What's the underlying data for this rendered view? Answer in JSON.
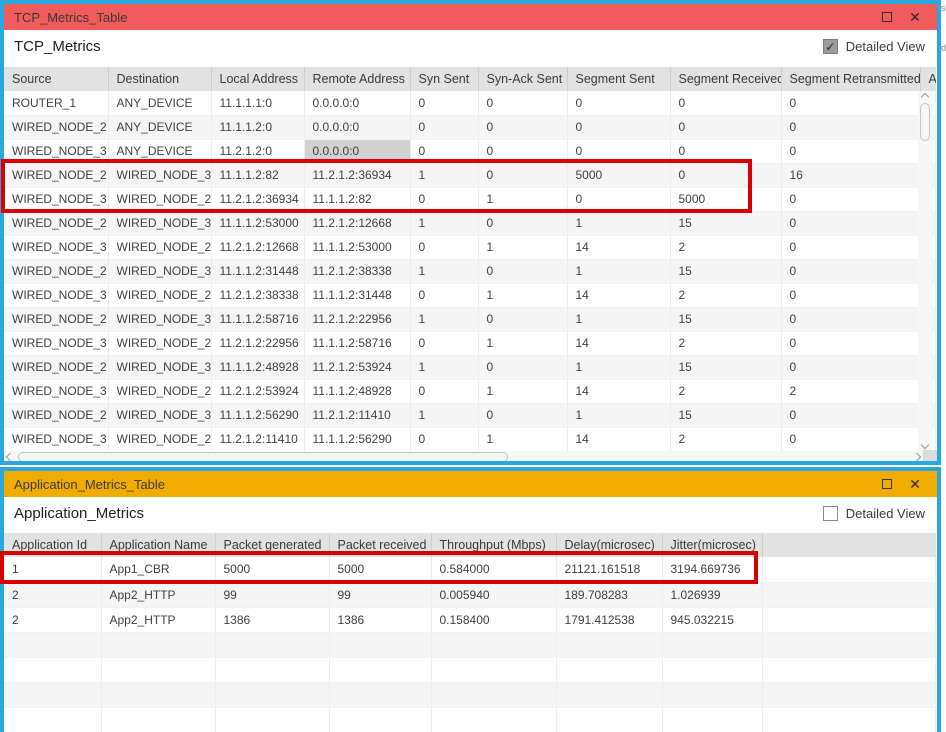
{
  "tcp_window": {
    "title": "TCP_Metrics_Table",
    "close_icon": "✕",
    "section_title": "TCP_Metrics",
    "detailed_view": {
      "label": "Detailed View",
      "checked": true
    },
    "table": {
      "columns": [
        "Source",
        "Destination",
        "Local Address",
        "Remote Address",
        "Syn Sent",
        "Syn-Ack Sent",
        "Segment Sent",
        "Segment Received",
        "Segment Retransmitted",
        "A"
      ],
      "rows": [
        [
          "ROUTER_1",
          "ANY_DEVICE",
          "11.1.1.1:0",
          "0.0.0.0:0",
          "0",
          "0",
          "0",
          "0",
          "0"
        ],
        [
          "WIRED_NODE_2",
          "ANY_DEVICE",
          "11.1.1.2:0",
          "0.0.0.0:0",
          "0",
          "0",
          "0",
          "0",
          "0"
        ],
        [
          "WIRED_NODE_3",
          "ANY_DEVICE",
          "11.2.1.2:0",
          "0.0.0.0:0",
          "0",
          "0",
          "0",
          "0",
          "0"
        ],
        [
          "WIRED_NODE_2",
          "WIRED_NODE_3",
          "11.1.1.2:82",
          "11.2.1.2:36934",
          "1",
          "0",
          "5000",
          "0",
          "16"
        ],
        [
          "WIRED_NODE_3",
          "WIRED_NODE_2",
          "11.2.1.2:36934",
          "11.1.1.2:82",
          "0",
          "1",
          "0",
          "5000",
          "0"
        ],
        [
          "WIRED_NODE_2",
          "WIRED_NODE_3",
          "11.1.1.2:53000",
          "11.2.1.2:12668",
          "1",
          "0",
          "1",
          "15",
          "0"
        ],
        [
          "WIRED_NODE_3",
          "WIRED_NODE_2",
          "11.2.1.2:12668",
          "11.1.1.2:53000",
          "0",
          "1",
          "14",
          "2",
          "0"
        ],
        [
          "WIRED_NODE_2",
          "WIRED_NODE_3",
          "11.1.1.2:31448",
          "11.2.1.2:38338",
          "1",
          "0",
          "1",
          "15",
          "0"
        ],
        [
          "WIRED_NODE_3",
          "WIRED_NODE_2",
          "11.2.1.2:38338",
          "11.1.1.2:31448",
          "0",
          "1",
          "14",
          "2",
          "0"
        ],
        [
          "WIRED_NODE_2",
          "WIRED_NODE_3",
          "11.1.1.2:58716",
          "11.2.1.2:22956",
          "1",
          "0",
          "1",
          "15",
          "0"
        ],
        [
          "WIRED_NODE_3",
          "WIRED_NODE_2",
          "11.2.1.2:22956",
          "11.1.1.2:58716",
          "0",
          "1",
          "14",
          "2",
          "0"
        ],
        [
          "WIRED_NODE_2",
          "WIRED_NODE_3",
          "11.1.1.2:48928",
          "11.2.1.2:53924",
          "1",
          "0",
          "1",
          "15",
          "0"
        ],
        [
          "WIRED_NODE_3",
          "WIRED_NODE_2",
          "11.2.1.2:53924",
          "11.1.1.2:48928",
          "0",
          "1",
          "14",
          "2",
          "2"
        ],
        [
          "WIRED_NODE_2",
          "WIRED_NODE_3",
          "11.1.1.2:56290",
          "11.2.1.2:11410",
          "1",
          "0",
          "1",
          "15",
          "0"
        ],
        [
          "WIRED_NODE_3",
          "WIRED_NODE_2",
          "11.2.1.2:11410",
          "11.1.1.2:56290",
          "0",
          "1",
          "14",
          "2",
          "0"
        ]
      ],
      "selected_cell": {
        "row": 2,
        "col": 3
      }
    }
  },
  "app_window": {
    "title": "Application_Metrics_Table",
    "close_icon": "✕",
    "section_title": "Application_Metrics",
    "detailed_view": {
      "label": "Detailed View",
      "checked": false
    },
    "table": {
      "columns": [
        "Application Id",
        "Application Name",
        "Packet generated",
        "Packet received",
        "Throughput (Mbps)",
        "Delay(microsec)",
        "Jitter(microsec)"
      ],
      "rows": [
        [
          "1",
          "App1_CBR",
          "5000",
          "5000",
          "0.584000",
          "21121.161518",
          "3194.669736"
        ],
        [
          "2",
          "App2_HTTP",
          "99",
          "99",
          "0.005940",
          "189.708283",
          "1.026939"
        ],
        [
          "2",
          "App2_HTTP",
          "1386",
          "1386",
          "0.158400",
          "1791.412538",
          "945.032215"
        ]
      ],
      "empty_row_count": 5
    }
  },
  "edge_strip": {
    "fragments": [
      "s",
      "d"
    ]
  },
  "colors": {
    "window_border": "#29a8df",
    "tcp_titlebar": "#f15b5b",
    "app_titlebar": "#f0ad00",
    "annotation_highlight": "#d90000",
    "header_bg": "#e2e2e2",
    "row_alt": "#f5f5f5",
    "selected_cell": "#d2d2d2"
  }
}
